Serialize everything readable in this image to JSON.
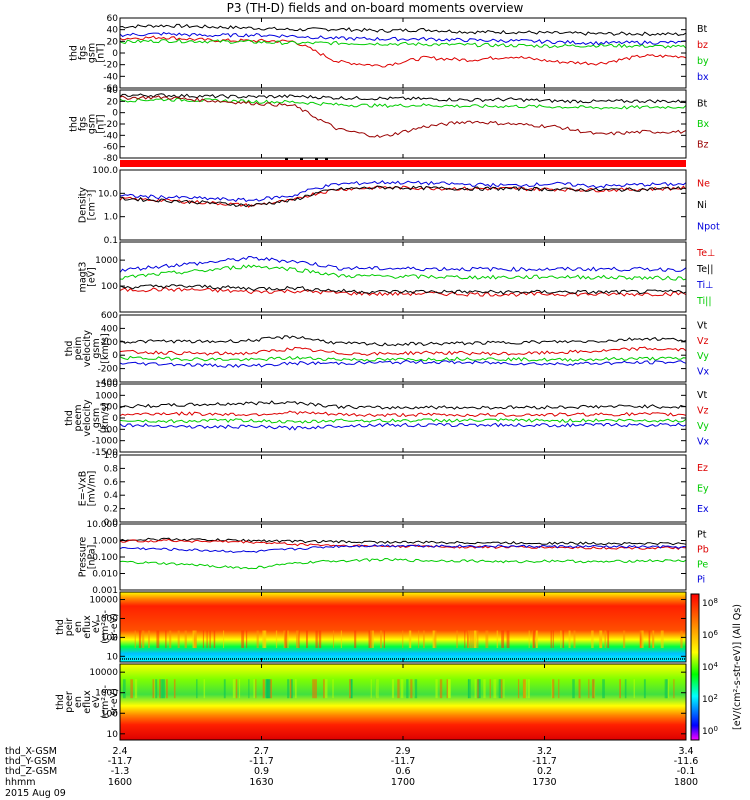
{
  "title": "P3 (TH-D) fields and on-board moments overview",
  "time_axis": {
    "range_hhmm": [
      1600,
      1800
    ],
    "ticks": [
      "1600",
      "1630",
      "1700",
      "1730",
      "1800"
    ],
    "date": "2015 Aug 09",
    "row_labels": [
      "thd_X-GSM",
      "thd_Y-GSM",
      "thd_Z-GSM",
      "hhmm"
    ],
    "ephemeris": {
      "x": [
        "2.4",
        "2.7",
        "2.9",
        "3.2",
        "3.4"
      ],
      "y": [
        "-11.7",
        "-11.7",
        "-11.7",
        "-11.7",
        "-11.6"
      ],
      "z": [
        "-1.3",
        "0.9",
        "0.6",
        "0.2",
        "-0.1"
      ]
    }
  },
  "colorbar": {
    "label": "[eV/(cm^2-s-str-eV)] (All Qs)",
    "ticks": [
      "10^8",
      "10^6",
      "10^4",
      "10^2",
      "10^0"
    ]
  },
  "chart_data": [
    {
      "type": "line",
      "name": "fgs-gsm",
      "ylabel": [
        "thd",
        "fgs",
        "gsm",
        "[nT]"
      ],
      "ylim": [
        -60,
        60
      ],
      "yticks": [
        "60",
        "40",
        "20",
        "0",
        "-20",
        "-40",
        "-60"
      ],
      "series": [
        {
          "name": "Bt",
          "color": "#000000",
          "values": [
            45,
            47,
            45,
            43,
            40,
            41,
            38,
            40,
            36,
            36,
            34,
            33,
            33,
            32
          ]
        },
        {
          "name": "bz",
          "color": "#dd0000",
          "values": [
            25,
            27,
            22,
            21,
            20,
            -15,
            -22,
            -8,
            -12,
            -6,
            -15,
            -18,
            -5,
            -6
          ]
        },
        {
          "name": "by",
          "color": "#00cc00",
          "values": [
            19,
            21,
            20,
            19,
            17,
            17,
            16,
            15,
            14,
            13,
            12,
            13,
            12,
            10
          ]
        },
        {
          "name": "bx",
          "color": "#0000dd",
          "values": [
            31,
            33,
            30,
            31,
            29,
            25,
            24,
            24,
            22,
            21,
            19,
            17,
            18,
            18
          ]
        }
      ]
    },
    {
      "type": "line",
      "name": "fgs-gsm-components",
      "ylabel": [
        "thd",
        "fgs",
        "gsm",
        "[nT]"
      ],
      "ylim": [
        -90,
        40
      ],
      "yticks": [
        "40",
        "20",
        "0",
        "-20",
        "-40",
        "-60",
        "-80"
      ],
      "series": [
        {
          "name": "Bt",
          "color": "#000000",
          "values": [
            30,
            30,
            28,
            27,
            28,
            25,
            24,
            23,
            21,
            22,
            19,
            18,
            19,
            18
          ]
        },
        {
          "name": "Bx",
          "color": "#00cc00",
          "values": [
            20,
            22,
            20,
            18,
            17,
            12,
            10,
            11,
            9,
            9,
            8,
            6,
            7,
            8
          ]
        },
        {
          "name": "Bz",
          "color": "#990000",
          "values": [
            25,
            26,
            20,
            15,
            10,
            -35,
            -50,
            -30,
            -20,
            -25,
            -30,
            -45,
            -40,
            -40
          ]
        }
      ]
    },
    {
      "type": "line",
      "name": "density",
      "ylabel": [
        "Density",
        "[cm^-3]"
      ],
      "ylim": [
        0.1,
        100
      ],
      "yscale": "log",
      "yticks": [
        "100.0",
        "10.0",
        "1.0",
        "0.1"
      ],
      "series": [
        {
          "name": "Ne",
          "color": "#dd0000",
          "values": [
            6,
            5,
            4,
            3,
            5,
            15,
            18,
            17,
            16,
            16,
            15,
            14,
            15,
            17
          ]
        },
        {
          "name": "Ni",
          "color": "#000000",
          "values": [
            6,
            5,
            4,
            3,
            5,
            15,
            18,
            17,
            16,
            16,
            15,
            14,
            15,
            17
          ]
        },
        {
          "name": "Npot",
          "color": "#0000dd",
          "values": [
            8,
            7,
            6,
            5,
            8,
            25,
            30,
            28,
            24,
            22,
            26,
            20,
            24,
            25
          ]
        }
      ]
    },
    {
      "type": "line",
      "name": "temperature",
      "ylabel": [
        "magt3",
        "[eV]"
      ],
      "ylim": [
        10,
        5000
      ],
      "yscale": "log",
      "yticks": [
        "1000",
        "100"
      ],
      "series": [
        {
          "name": "Te⊥",
          "color": "#dd0000",
          "values": [
            70,
            75,
            70,
            60,
            65,
            55,
            50,
            52,
            50,
            48,
            50,
            48,
            50,
            52
          ]
        },
        {
          "name": "Te||",
          "color": "#000000",
          "values": [
            90,
            100,
            95,
            80,
            85,
            65,
            60,
            62,
            60,
            58,
            60,
            58,
            60,
            62
          ]
        },
        {
          "name": "Ti⊥",
          "color": "#0000dd",
          "values": [
            400,
            600,
            800,
            1200,
            900,
            500,
            480,
            470,
            460,
            450,
            450,
            460,
            450,
            440
          ]
        },
        {
          "name": "Ti||",
          "color": "#00cc00",
          "values": [
            200,
            300,
            400,
            600,
            450,
            250,
            240,
            230,
            220,
            220,
            230,
            220,
            210,
            200
          ]
        }
      ]
    },
    {
      "type": "line",
      "name": "peim-velocity",
      "ylabel": [
        "thd",
        "peim",
        "velocity",
        "gsm",
        "[km/s]"
      ],
      "ylim": [
        -400,
        600
      ],
      "yticks": [
        "600",
        "400",
        "200",
        "0",
        "-200",
        "-400"
      ],
      "series": [
        {
          "name": "Vt",
          "color": "#000000",
          "values": [
            200,
            210,
            200,
            220,
            280,
            180,
            160,
            170,
            180,
            190,
            200,
            210,
            250,
            230
          ]
        },
        {
          "name": "Vz",
          "color": "#dd0000",
          "values": [
            50,
            40,
            20,
            30,
            100,
            30,
            20,
            40,
            30,
            20,
            40,
            60,
            100,
            80
          ]
        },
        {
          "name": "Vy",
          "color": "#00cc00",
          "values": [
            -40,
            -50,
            -60,
            -70,
            -40,
            -60,
            -70,
            -60,
            -50,
            -60,
            -70,
            -60,
            -50,
            -50
          ]
        },
        {
          "name": "Vx",
          "color": "#0000dd",
          "values": [
            -120,
            -130,
            -150,
            -160,
            -120,
            -120,
            -110,
            -100,
            -110,
            -120,
            -130,
            -120,
            -110,
            -100
          ]
        }
      ]
    },
    {
      "type": "line",
      "name": "peem-velocity",
      "ylabel": [
        "thd",
        "peem",
        "velocity",
        "gsm",
        "[km/s]"
      ],
      "ylim": [
        -1500,
        1500
      ],
      "yticks": [
        "1500",
        "1000",
        "500",
        "0",
        "-500",
        "-1000",
        "-1500"
      ],
      "series": [
        {
          "name": "Vt",
          "color": "#000000",
          "values": [
            500,
            550,
            600,
            650,
            700,
            500,
            450,
            480,
            460,
            470,
            480,
            500,
            520,
            480
          ]
        },
        {
          "name": "Vz",
          "color": "#dd0000",
          "values": [
            150,
            200,
            180,
            150,
            250,
            150,
            120,
            150,
            130,
            140,
            150,
            160,
            170,
            150
          ]
        },
        {
          "name": "Vy",
          "color": "#00cc00",
          "values": [
            -100,
            -150,
            -120,
            -100,
            -200,
            -100,
            -120,
            -100,
            -110,
            -100,
            -120,
            -100,
            -110,
            -100
          ]
        },
        {
          "name": "Vx",
          "color": "#0000dd",
          "values": [
            -300,
            -350,
            -400,
            -380,
            -450,
            -350,
            -300,
            -320,
            -300,
            -310,
            -320,
            -300,
            -310,
            -300
          ]
        }
      ]
    },
    {
      "type": "line",
      "name": "electric-field",
      "ylabel": [
        "E=-VxB",
        "[mV/m]"
      ],
      "ylim": [
        0,
        1
      ],
      "yticks": [
        "1.0",
        "0.8",
        "0.6",
        "0.4",
        "0.2",
        "0.0"
      ],
      "series": [
        {
          "name": "Ez",
          "color": "#dd0000",
          "values": []
        },
        {
          "name": "Ey",
          "color": "#00cc00",
          "values": []
        },
        {
          "name": "Ex",
          "color": "#0000dd",
          "values": []
        }
      ]
    },
    {
      "type": "line",
      "name": "pressure",
      "ylabel": [
        "Pressure",
        "[nPa]"
      ],
      "ylim": [
        0.001,
        10
      ],
      "yscale": "log",
      "yticks": [
        "10.000",
        "1.000",
        "0.100",
        "0.010",
        "0.001"
      ],
      "series": [
        {
          "name": "Pt",
          "color": "#000000",
          "values": [
            1.1,
            1.2,
            1.1,
            1.0,
            0.9,
            0.85,
            0.8,
            0.78,
            0.75,
            0.72,
            0.7,
            0.68,
            0.66,
            0.65
          ]
        },
        {
          "name": "Pb",
          "color": "#dd0000",
          "values": [
            0.9,
            1.0,
            0.9,
            0.8,
            0.6,
            0.5,
            0.45,
            0.45,
            0.4,
            0.4,
            0.38,
            0.36,
            0.35,
            0.35
          ]
        },
        {
          "name": "Pe",
          "color": "#00cc00",
          "values": [
            0.05,
            0.04,
            0.03,
            0.02,
            0.04,
            0.06,
            0.07,
            0.06,
            0.06,
            0.05,
            0.06,
            0.05,
            0.06,
            0.06
          ]
        },
        {
          "name": "Pi",
          "color": "#0000dd",
          "values": [
            0.35,
            0.3,
            0.25,
            0.2,
            0.3,
            0.45,
            0.5,
            0.48,
            0.46,
            0.45,
            0.44,
            0.43,
            0.42,
            0.4
          ]
        }
      ]
    },
    {
      "type": "heatmap",
      "name": "peir-energy-flux",
      "ylabel": [
        "thd",
        "peir",
        "en",
        "eflux",
        "eV",
        "(cm^2-s-",
        "sr-eV)"
      ],
      "ylim": [
        5,
        25000
      ],
      "yscale": "log",
      "yticks": [
        "10000",
        "1000",
        "100",
        "10"
      ],
      "colorbar_range_log": [
        0,
        8
      ]
    },
    {
      "type": "heatmap",
      "name": "peer-energy-flux",
      "ylabel": [
        "thd",
        "peer",
        "en",
        "eflux",
        "eV",
        "(cm^2-s-",
        "sr-eV)"
      ],
      "ylim": [
        5,
        25000
      ],
      "yscale": "log",
      "yticks": [
        "10000",
        "1000",
        "100",
        "10"
      ],
      "colorbar_range_log": [
        0,
        8
      ]
    }
  ]
}
